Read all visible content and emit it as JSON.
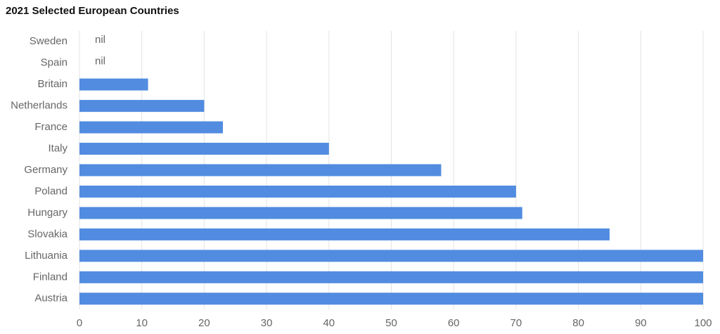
{
  "chart_data": {
    "type": "hbar",
    "title": "2021 Selected European Countries",
    "categories": [
      "Sweden",
      "Spain",
      "Britain",
      "Netherlands",
      "France",
      "Italy",
      "Germany",
      "Poland",
      "Hungary",
      "Slovakia",
      "Lithuania",
      "Finland",
      "Austria"
    ],
    "values": [
      null,
      null,
      11,
      20,
      23,
      40,
      58,
      70,
      71,
      85,
      100,
      100,
      100
    ],
    "value_labels": [
      "nil",
      "nil",
      null,
      null,
      null,
      null,
      null,
      null,
      null,
      null,
      null,
      null,
      null
    ],
    "color": "#518ce0",
    "xlim": [
      0,
      100
    ],
    "xticks": [
      0,
      10,
      20,
      30,
      40,
      50,
      60,
      70,
      80,
      90,
      100
    ],
    "grid": true
  }
}
